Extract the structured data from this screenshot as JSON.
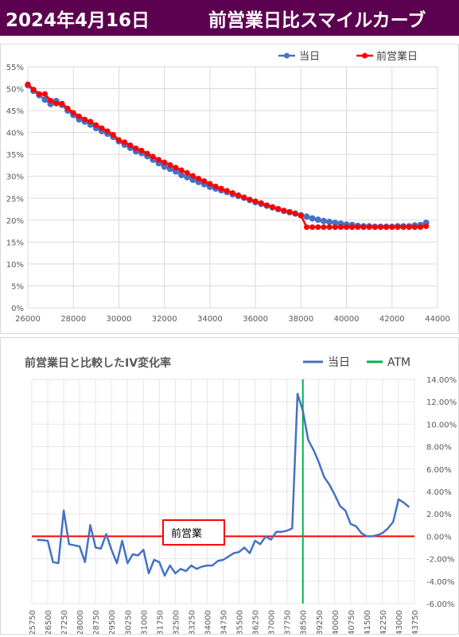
{
  "header": {
    "date": "2024年4月16日",
    "title": "前営業日比スマイルカーブ"
  },
  "colors": {
    "header_bg": "#5c0050",
    "today": "#4472c4",
    "prev": "#ff0000",
    "atm": "#00b050",
    "iv_line": "#4472c4"
  },
  "chart_data": [
    {
      "type": "line",
      "title": "",
      "legend": "top-right",
      "xlim": [
        26000,
        44000
      ],
      "ylim": [
        0,
        55
      ],
      "x_ticks": [
        "26000",
        "28000",
        "30000",
        "32000",
        "34000",
        "36000",
        "38000",
        "40000",
        "42000",
        "44000"
      ],
      "y_ticks": [
        "0%",
        "5%",
        "10%",
        "15%",
        "20%",
        "25%",
        "30%",
        "35%",
        "40%",
        "45%",
        "50%",
        "55%"
      ],
      "series": [
        {
          "name": "当日",
          "color": "#4472c4",
          "points": [
            [
              26000,
              50.8
            ],
            [
              26250,
              49.5
            ],
            [
              26500,
              48.5
            ],
            [
              26750,
              47.5
            ],
            [
              27000,
              46.5
            ],
            [
              27250,
              47.2
            ],
            [
              27500,
              46.3
            ],
            [
              27750,
              45.0
            ],
            [
              28000,
              44.0
            ],
            [
              28250,
              43.0
            ],
            [
              28500,
              42.5
            ],
            [
              28750,
              41.8
            ],
            [
              29000,
              41.0
            ],
            [
              29250,
              40.3
            ],
            [
              29500,
              39.7
            ],
            [
              29750,
              39.0
            ],
            [
              30000,
              38.0
            ],
            [
              30250,
              37.2
            ],
            [
              30500,
              36.5
            ],
            [
              30750,
              35.7
            ],
            [
              31000,
              35.3
            ],
            [
              31250,
              34.6
            ],
            [
              31500,
              33.8
            ],
            [
              31750,
              33.0
            ],
            [
              32000,
              32.2
            ],
            [
              32250,
              31.7
            ],
            [
              32500,
              31.1
            ],
            [
              32750,
              30.3
            ],
            [
              33000,
              29.8
            ],
            [
              33250,
              29.2
            ],
            [
              33500,
              28.7
            ],
            [
              33750,
              28.2
            ],
            [
              34000,
              27.6
            ],
            [
              34250,
              27.2
            ],
            [
              34500,
              26.8
            ],
            [
              34750,
              26.4
            ],
            [
              35000,
              25.9
            ],
            [
              35250,
              25.5
            ],
            [
              35500,
              25.1
            ],
            [
              35750,
              24.6
            ],
            [
              36000,
              24.1
            ],
            [
              36250,
              23.7
            ],
            [
              36500,
              23.3
            ],
            [
              36750,
              22.9
            ],
            [
              37000,
              22.5
            ],
            [
              37250,
              22.1
            ],
            [
              37500,
              21.8
            ],
            [
              37750,
              21.5
            ],
            [
              38000,
              21.1
            ],
            [
              38250,
              20.8
            ],
            [
              38500,
              20.4
            ],
            [
              38750,
              20.1
            ],
            [
              39000,
              19.8
            ],
            [
              39250,
              19.6
            ],
            [
              39500,
              19.4
            ],
            [
              39750,
              19.2
            ],
            [
              40000,
              19.0
            ],
            [
              40250,
              18.9
            ],
            [
              40500,
              18.7
            ],
            [
              40750,
              18.6
            ],
            [
              41000,
              18.6
            ],
            [
              41250,
              18.5
            ],
            [
              41500,
              18.5
            ],
            [
              41750,
              18.5
            ],
            [
              42000,
              18.5
            ],
            [
              42250,
              18.6
            ],
            [
              42500,
              18.6
            ],
            [
              42750,
              18.6
            ],
            [
              43000,
              18.8
            ],
            [
              43250,
              18.9
            ],
            [
              43500,
              19.4
            ]
          ]
        },
        {
          "name": "前営業日",
          "color": "#ff0000",
          "points": [
            [
              26000,
              51.0
            ],
            [
              26250,
              49.8
            ],
            [
              26500,
              48.8
            ],
            [
              26750,
              48.8
            ],
            [
              27000,
              47.3
            ],
            [
              27250,
              46.6
            ],
            [
              27500,
              46.6
            ],
            [
              27750,
              45.5
            ],
            [
              28000,
              44.5
            ],
            [
              28250,
              43.7
            ],
            [
              28500,
              43.0
            ],
            [
              28750,
              42.5
            ],
            [
              29000,
              41.7
            ],
            [
              29250,
              41.0
            ],
            [
              29500,
              40.3
            ],
            [
              29750,
              39.5
            ],
            [
              30000,
              38.3
            ],
            [
              30250,
              37.8
            ],
            [
              30500,
              37.1
            ],
            [
              30750,
              36.4
            ],
            [
              31000,
              35.9
            ],
            [
              31250,
              35.2
            ],
            [
              31500,
              34.5
            ],
            [
              31750,
              33.8
            ],
            [
              32000,
              33.2
            ],
            [
              32250,
              32.6
            ],
            [
              32500,
              32.0
            ],
            [
              32750,
              31.4
            ],
            [
              33000,
              30.8
            ],
            [
              33250,
              30.1
            ],
            [
              33500,
              29.5
            ],
            [
              33750,
              28.9
            ],
            [
              34000,
              28.3
            ],
            [
              34250,
              27.7
            ],
            [
              34500,
              27.2
            ],
            [
              34750,
              26.7
            ],
            [
              35000,
              26.2
            ],
            [
              35250,
              25.7
            ],
            [
              35500,
              25.2
            ],
            [
              35750,
              24.7
            ],
            [
              36000,
              24.3
            ],
            [
              36250,
              23.9
            ],
            [
              36500,
              23.4
            ],
            [
              36750,
              23.0
            ],
            [
              37000,
              22.6
            ],
            [
              37250,
              22.2
            ],
            [
              37500,
              21.9
            ],
            [
              37750,
              21.5
            ],
            [
              38000,
              21.1
            ],
            [
              38250,
              18.4
            ],
            [
              38500,
              18.4
            ],
            [
              38750,
              18.4
            ],
            [
              39000,
              18.4
            ],
            [
              39250,
              18.4
            ],
            [
              39500,
              18.4
            ],
            [
              39750,
              18.4
            ],
            [
              40000,
              18.4
            ],
            [
              40250,
              18.4
            ],
            [
              40500,
              18.4
            ],
            [
              40750,
              18.4
            ],
            [
              41000,
              18.4
            ],
            [
              41250,
              18.4
            ],
            [
              41500,
              18.4
            ],
            [
              41750,
              18.4
            ],
            [
              42000,
              18.4
            ],
            [
              42250,
              18.4
            ],
            [
              42500,
              18.4
            ],
            [
              42750,
              18.4
            ],
            [
              43000,
              18.4
            ],
            [
              43250,
              18.4
            ],
            [
              43500,
              18.6
            ]
          ]
        }
      ]
    },
    {
      "type": "line",
      "title": "前営業日と比較したIV変化率",
      "legend": "top-right",
      "xlim": [
        25750,
        43750
      ],
      "ylim": [
        -6,
        14
      ],
      "y_axis_side": "right",
      "x_ticks": [
        "25750",
        "26500",
        "27250",
        "28000",
        "28750",
        "29500",
        "30250",
        "31000",
        "31750",
        "32500",
        "33250",
        "34000",
        "34750",
        "35500",
        "36250",
        "37000",
        "37750",
        "38500",
        "39250",
        "40000",
        "40750",
        "41500",
        "42250",
        "43000",
        "43750"
      ],
      "y_ticks": [
        "-6.00%",
        "-4.00%",
        "-2.00%",
        "0.00%",
        "2.00%",
        "4.00%",
        "6.00%",
        "8.00%",
        "10.00%",
        "12.00%",
        "14.00%"
      ],
      "reference_line": {
        "label": "前営業",
        "value": 0,
        "color": "#ff0000"
      },
      "atm_line": {
        "name": "ATM",
        "x": 38500,
        "color": "#00b050"
      },
      "series": [
        {
          "name": "当日",
          "color": "#4472c4",
          "points": [
            [
              26000,
              -0.3
            ],
            [
              26250,
              -0.35
            ],
            [
              26500,
              -0.4
            ],
            [
              26750,
              -2.3
            ],
            [
              27000,
              -2.4
            ],
            [
              27250,
              2.3
            ],
            [
              27500,
              -0.7
            ],
            [
              27750,
              -0.8
            ],
            [
              28000,
              -0.9
            ],
            [
              28250,
              -2.3
            ],
            [
              28500,
              1.0
            ],
            [
              28750,
              -1.0
            ],
            [
              29000,
              -1.1
            ],
            [
              29250,
              0.2
            ],
            [
              29500,
              -1.2
            ],
            [
              29750,
              -2.4
            ],
            [
              30000,
              -0.4
            ],
            [
              30250,
              -2.4
            ],
            [
              30500,
              -1.6
            ],
            [
              30750,
              -1.7
            ],
            [
              31000,
              -1.2
            ],
            [
              31250,
              -3.3
            ],
            [
              31500,
              -2.1
            ],
            [
              31750,
              -2.3
            ],
            [
              32000,
              -3.5
            ],
            [
              32250,
              -2.6
            ],
            [
              32500,
              -3.3
            ],
            [
              32750,
              -2.9
            ],
            [
              33000,
              -3.1
            ],
            [
              33250,
              -2.6
            ],
            [
              33500,
              -2.9
            ],
            [
              33750,
              -2.7
            ],
            [
              34000,
              -2.6
            ],
            [
              34250,
              -2.6
            ],
            [
              34500,
              -2.2
            ],
            [
              34750,
              -2.1
            ],
            [
              35000,
              -1.8
            ],
            [
              35250,
              -1.5
            ],
            [
              35500,
              -1.4
            ],
            [
              35750,
              -1.0
            ],
            [
              36000,
              -1.5
            ],
            [
              36250,
              -0.4
            ],
            [
              36500,
              -0.7
            ],
            [
              36750,
              0.0
            ],
            [
              37000,
              -0.3
            ],
            [
              37250,
              0.4
            ],
            [
              37500,
              0.4
            ],
            [
              37750,
              0.5
            ],
            [
              38000,
              0.7
            ],
            [
              38250,
              12.7
            ],
            [
              38500,
              11.2
            ],
            [
              38750,
              8.6
            ],
            [
              39000,
              7.7
            ],
            [
              39250,
              6.6
            ],
            [
              39500,
              5.3
            ],
            [
              39750,
              4.6
            ],
            [
              40000,
              3.7
            ],
            [
              40250,
              2.7
            ],
            [
              40500,
              2.3
            ],
            [
              40750,
              1.1
            ],
            [
              41000,
              0.9
            ],
            [
              41250,
              0.3
            ],
            [
              41500,
              0.0
            ],
            [
              41750,
              0.0
            ],
            [
              42000,
              0.1
            ],
            [
              42250,
              0.3
            ],
            [
              42500,
              0.7
            ],
            [
              42750,
              1.3
            ],
            [
              43000,
              3.3
            ],
            [
              43250,
              3.0
            ],
            [
              43500,
              2.6
            ]
          ]
        }
      ]
    }
  ]
}
